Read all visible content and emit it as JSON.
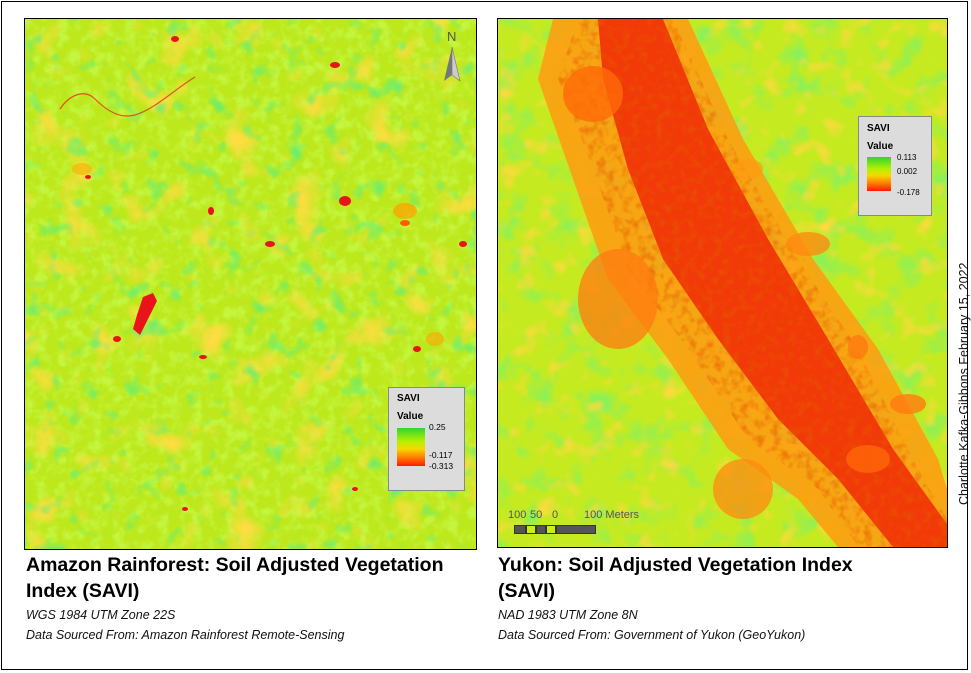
{
  "maps": [
    {
      "id": "amazon",
      "title": "Amazon Rainforest: Soil Adjusted Vegetation Index (SAVI)",
      "projection": "WGS 1984 UTM Zone 22S",
      "source": "Data Sourced From: Amazon Rainforest Remote-Sensing",
      "legend": {
        "title": "SAVI",
        "subtitle": "Value",
        "ticks": [
          "0.25",
          "-0.117",
          "-0.313"
        ]
      },
      "north_arrow_label": "N",
      "north_arrow_icon": "north-arrow-icon"
    },
    {
      "id": "yukon",
      "title": "Yukon: Soil Adjusted Vegetation Index (SAVI)",
      "projection": "NAD 1983 UTM Zone 8N",
      "source": "Data Sourced From: Government of Yukon (GeoYukon)",
      "legend": {
        "title": "SAVI",
        "subtitle": "Value",
        "ticks": [
          "0.113",
          "0.002",
          "-0.178"
        ]
      },
      "scale_bar": {
        "labels": [
          "100",
          "50",
          "0",
          "100 Meters"
        ]
      }
    }
  ],
  "credit": "Charlotte Kafka-Gibbons February 15, 2022",
  "colors": {
    "high": "#2fd62f",
    "mid": "#c8ef1a",
    "low": "#ff1a00"
  }
}
